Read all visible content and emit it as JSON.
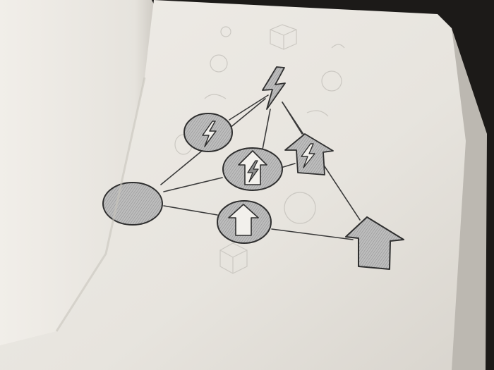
{
  "scene": {
    "description_name": "sketchbook-drawing",
    "colors": {
      "desk": "#1c1a18",
      "paper": "#e9e6e0",
      "paper_shadow": "#d8d4cd",
      "left_page": "#ece9e3",
      "graphite": "#3a3a3a",
      "shading": "#a9a9a9",
      "faint_pencil": "#c9c6c0"
    }
  }
}
